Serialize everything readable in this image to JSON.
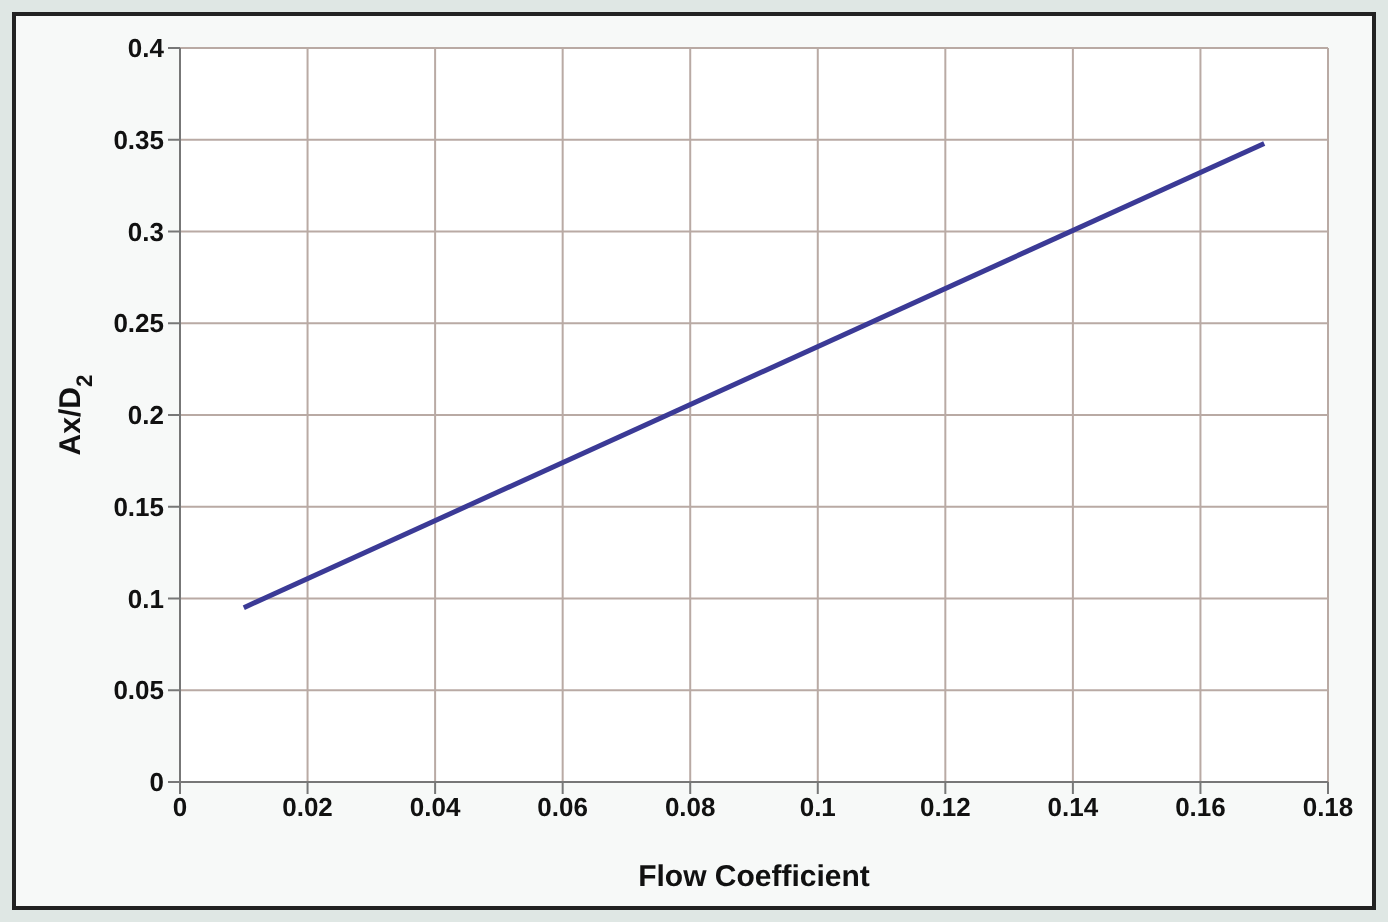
{
  "chart_data": {
    "type": "line",
    "xlabel": "Flow Coefficient",
    "ylabel": "Ax/D$_{2}$",
    "x": [
      0.01,
      0.17
    ],
    "series": [
      {
        "color": "#3b3a96",
        "values": [
          0.095,
          0.348
        ]
      }
    ],
    "xlim": [
      0,
      0.18
    ],
    "xticks": [
      0,
      0.02,
      0.04,
      0.06,
      0.08,
      0.1,
      0.12,
      0.14,
      0.16,
      0.18
    ],
    "ylim": [
      0,
      0.4
    ],
    "yticks": [
      0,
      0.05,
      0.1,
      0.15,
      0.2,
      0.25,
      0.3,
      0.35,
      0.4
    ],
    "grid": true
  }
}
